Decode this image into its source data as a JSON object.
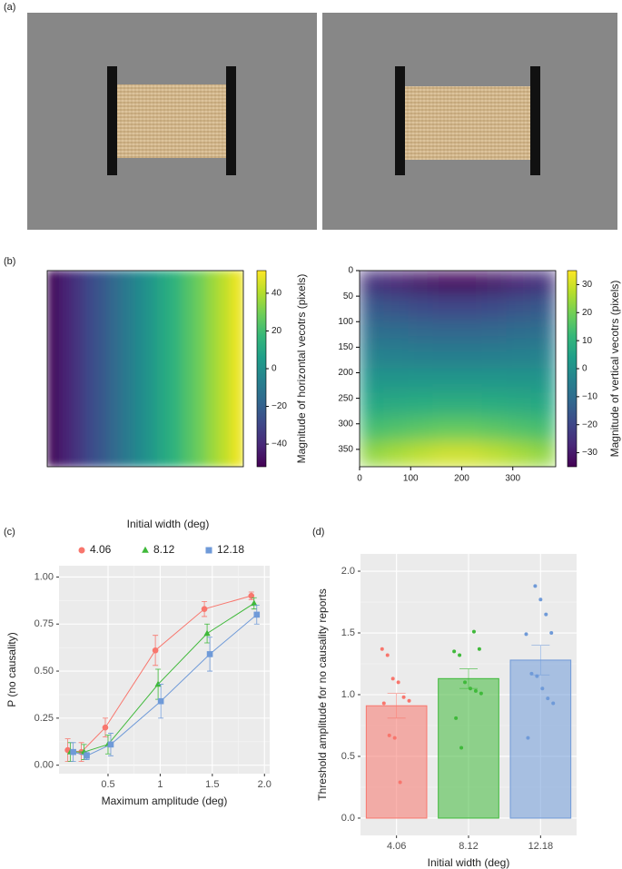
{
  "panel_labels": [
    "(a)",
    "(b)",
    "(c)",
    "(d)"
  ],
  "chart_data": [
    {
      "type": "heatmap",
      "colormap": "viridis",
      "clim": [
        -52,
        52
      ],
      "values": [
        [
          -49,
          -42,
          -36,
          -29,
          -23,
          -16,
          -10,
          -3,
          3,
          10,
          16,
          23,
          29,
          36,
          42,
          49
        ]
      ],
      "cbar_ticks": [
        {
          "value": -40,
          "label": "−40"
        },
        {
          "value": -20,
          "label": "−20"
        },
        0,
        20,
        40
      ],
      "cbar_label": "Magnitude of horizontal vecotrs (pixels)"
    },
    {
      "type": "heatmap",
      "colormap": "viridis",
      "clim": [
        -35,
        35
      ],
      "xlim": [
        0,
        384
      ],
      "ylim": [
        384,
        0
      ],
      "xticks": [
        0,
        100,
        200,
        300
      ],
      "yticks": [
        0,
        50,
        100,
        150,
        200,
        250,
        300,
        350
      ],
      "values": [
        [
          -25,
          -27.5,
          -30,
          -32,
          -32,
          -30,
          -27.5,
          -25
        ],
        [
          -15.6,
          -17.2,
          -18.8,
          -20,
          -20,
          -18.8,
          -17.2,
          -15.6
        ],
        [
          -9.4,
          -10.3,
          -11.3,
          -12,
          -12,
          -11.3,
          -10.3,
          -9.4
        ],
        [
          -3.9,
          -4.3,
          -4.7,
          -5,
          -5,
          -4.7,
          -4.3,
          -3.9
        ],
        [
          1.6,
          1.7,
          1.9,
          2,
          2,
          1.9,
          1.7,
          1.6
        ],
        [
          7,
          7.7,
          8.5,
          9,
          9,
          8.5,
          7.7,
          7
        ],
        [
          14,
          15.5,
          16.9,
          18,
          18,
          16.9,
          15.5,
          14
        ],
        [
          23.4,
          25.8,
          28.2,
          30,
          30,
          28.2,
          25.8,
          23.4
        ]
      ],
      "cbar_ticks": [
        {
          "value": -30,
          "label": "−30"
        },
        {
          "value": -20,
          "label": "−20"
        },
        {
          "value": -10,
          "label": "−10"
        },
        0,
        10,
        20,
        30
      ],
      "cbar_label": "Magnitude of vertical vecotrs (pixels)"
    },
    {
      "type": "line",
      "legend_title": "Initial width (deg)",
      "xlabel": "Maximum amplitude (deg)",
      "ylabel": "P (no causality)",
      "x": [
        0.14,
        0.27,
        0.5,
        0.98,
        1.45,
        1.9
      ],
      "xlim": [
        0.03,
        2.05
      ],
      "ylim": [
        -0.045,
        1.06
      ],
      "xticks": [
        0.5,
        1,
        1.5,
        {
          "value": 2,
          "label": "2.0"
        }
      ],
      "yticks": [
        {
          "value": 0,
          "label": "0.00"
        },
        {
          "value": 0.25,
          "label": "0.25"
        },
        {
          "value": 0.5,
          "label": "0.50"
        },
        {
          "value": 0.75,
          "label": "0.75"
        },
        {
          "value": 1,
          "label": "1.00"
        }
      ],
      "grid": true,
      "series": [
        {
          "name": "4.06",
          "color": "#f8766d",
          "marker": "circle",
          "values": [
            0.08,
            0.07,
            0.2,
            0.61,
            0.83,
            0.9
          ],
          "errors": [
            0.06,
            0.05,
            0.05,
            0.08,
            0.04,
            0.02
          ]
        },
        {
          "name": "8.12",
          "color": "#3fb93a",
          "marker": "triangle",
          "values": [
            0.07,
            0.07,
            0.11,
            0.43,
            0.7,
            0.86
          ],
          "errors": [
            0.05,
            0.04,
            0.05,
            0.08,
            0.05,
            0.03
          ]
        },
        {
          "name": "12.18",
          "color": "#6f9ad8",
          "marker": "square",
          "values": [
            0.07,
            0.05,
            0.11,
            0.34,
            0.59,
            0.8
          ],
          "errors": [
            0.05,
            0.02,
            0.06,
            0.09,
            0.09,
            0.05
          ]
        }
      ]
    },
    {
      "type": "bar",
      "xlabel": "Initial width (deg)",
      "ylabel": "Threshold amplitude for no causality reports",
      "categories": [
        "4.06",
        "8.12",
        "12.18"
      ],
      "values": [
        0.91,
        1.13,
        1.28
      ],
      "errors": [
        0.1,
        0.08,
        0.12
      ],
      "colors": [
        "#f8766d",
        "#3fb93a",
        "#6f9ad8"
      ],
      "points": [
        [
          1.37,
          1.32,
          1.13,
          1.1,
          0.98,
          0.95,
          0.93,
          0.67,
          0.65,
          0.29
        ],
        [
          1.51,
          1.37,
          1.35,
          1.32,
          1.1,
          1.05,
          1.03,
          1.01,
          0.81,
          0.57
        ],
        [
          1.88,
          1.77,
          1.65,
          1.5,
          1.49,
          1.17,
          1.15,
          1.05,
          0.97,
          0.93,
          0.65
        ]
      ],
      "ylim": [
        -0.14,
        2.14
      ],
      "yticks": [
        {
          "value": 0,
          "label": "0.0"
        },
        {
          "value": 0.5,
          "label": "0.5"
        },
        {
          "value": 1,
          "label": "1.0"
        },
        {
          "value": 1.5,
          "label": "1.5"
        },
        {
          "value": 2,
          "label": "2.0"
        }
      ],
      "grid": true
    }
  ]
}
